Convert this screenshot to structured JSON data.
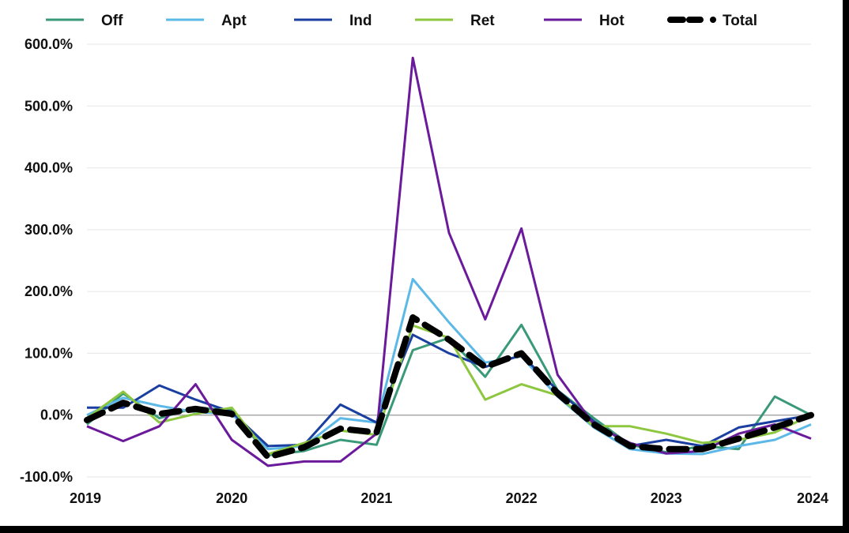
{
  "chart_data": {
    "type": "line",
    "x": [
      "2019Q1",
      "2019Q2",
      "2019Q3",
      "2019Q4",
      "2020Q1",
      "2020Q2",
      "2020Q3",
      "2020Q4",
      "2021Q1",
      "2021Q2",
      "2021Q3",
      "2021Q4",
      "2022Q1",
      "2022Q2",
      "2022Q3",
      "2022Q4",
      "2023Q1",
      "2023Q2",
      "2023Q3",
      "2023Q4",
      "2024Q1"
    ],
    "x_tick_labels": [
      "2019",
      "2020",
      "2021",
      "2022",
      "2023",
      "2024"
    ],
    "y_tick_labels": [
      "600.0%",
      "500.0%",
      "400.0%",
      "300.0%",
      "200.0%",
      "100.0%",
      "0.0%",
      "-100.0%"
    ],
    "ylim": [
      -100,
      600
    ],
    "yunit": "%",
    "grid": "horizontal",
    "legend_position": "top",
    "series": [
      {
        "name": "Off",
        "color": "#3a9a78",
        "dash": "solid",
        "values": [
          -15,
          35,
          -5,
          12,
          8,
          -65,
          -58,
          -40,
          -48,
          105,
          125,
          62,
          146,
          40,
          -5,
          -48,
          -60,
          -50,
          -55,
          30,
          0
        ]
      },
      {
        "name": "Apt",
        "color": "#5cb8e6",
        "dash": "solid",
        "values": [
          0,
          28,
          15,
          5,
          2,
          -55,
          -50,
          -5,
          -12,
          220,
          150,
          85,
          95,
          30,
          -20,
          -55,
          -62,
          -63,
          -50,
          -40,
          -15
        ]
      },
      {
        "name": "Ind",
        "color": "#1b3fa0",
        "dash": "solid",
        "values": [
          12,
          12,
          48,
          25,
          5,
          -50,
          -48,
          17,
          -12,
          130,
          100,
          78,
          97,
          40,
          -10,
          -50,
          -40,
          -50,
          -20,
          -10,
          0
        ]
      },
      {
        "name": "Ret",
        "color": "#8dc63f",
        "dash": "solid",
        "values": [
          -5,
          38,
          -12,
          2,
          12,
          -63,
          -45,
          -25,
          -32,
          145,
          125,
          25,
          50,
          32,
          -18,
          -18,
          -30,
          -45,
          -40,
          -28,
          0
        ]
      },
      {
        "name": "Hot",
        "color": "#6a1a9a",
        "dash": "solid",
        "values": [
          -18,
          -42,
          -18,
          50,
          -40,
          -82,
          -75,
          -75,
          -30,
          578,
          295,
          155,
          302,
          65,
          -15,
          -45,
          -62,
          -58,
          -30,
          -15,
          -38
        ]
      },
      {
        "name": "Total",
        "color": "#000000",
        "dash": "dashed",
        "values": [
          -8,
          20,
          2,
          10,
          2,
          -68,
          -52,
          -22,
          -28,
          158,
          122,
          78,
          100,
          35,
          -15,
          -50,
          -55,
          -55,
          -38,
          -20,
          0
        ]
      }
    ]
  }
}
